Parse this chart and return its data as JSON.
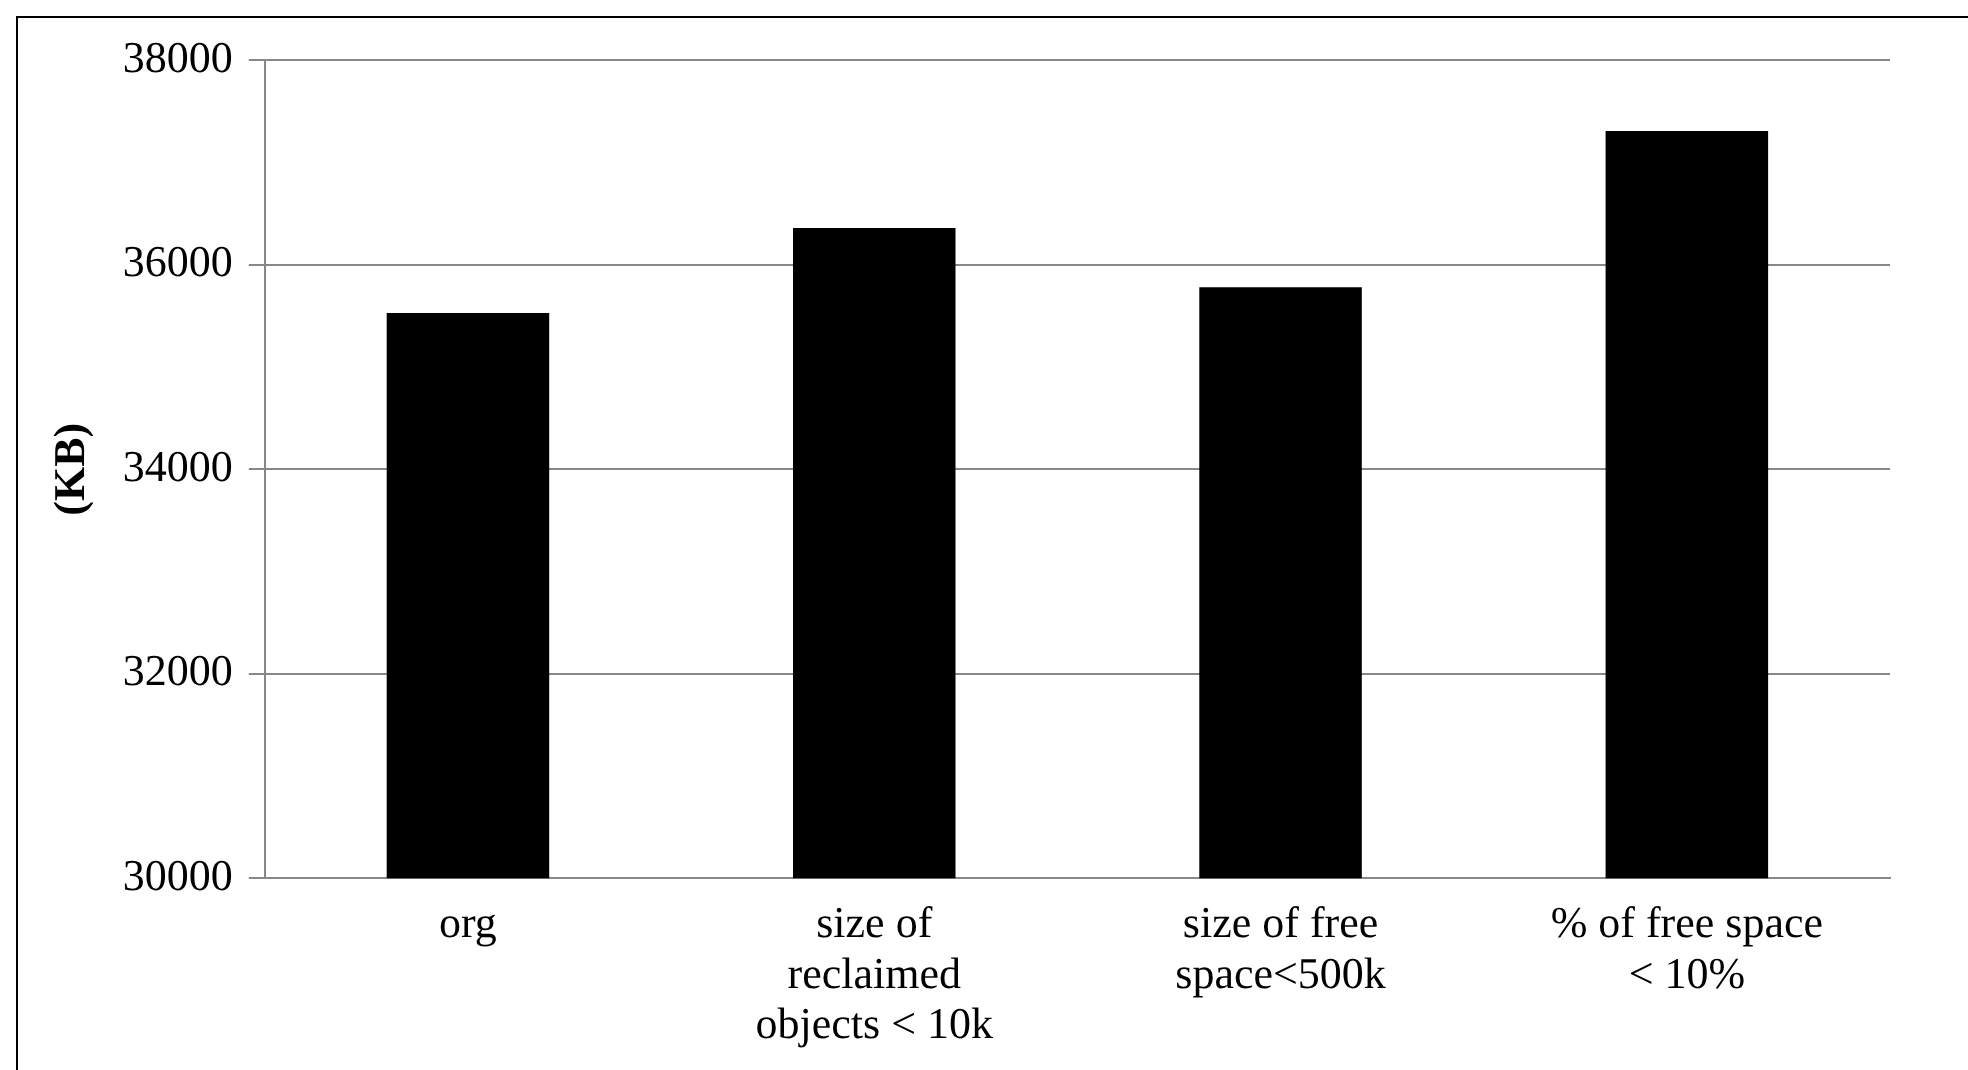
{
  "chart_data": {
    "type": "bar",
    "ylabel": "(KB)",
    "categories": [
      "org",
      "size of reclaimed objects < 10k",
      "size of free space<500k",
      "% of free space < 10%"
    ],
    "values": [
      35530,
      36360,
      35780,
      37310
    ],
    "color": "#000000",
    "ylim": [
      30000,
      38000
    ],
    "yticks": [
      30000,
      32000,
      34000,
      36000,
      38000
    ],
    "grid": "y",
    "legend": false
  }
}
